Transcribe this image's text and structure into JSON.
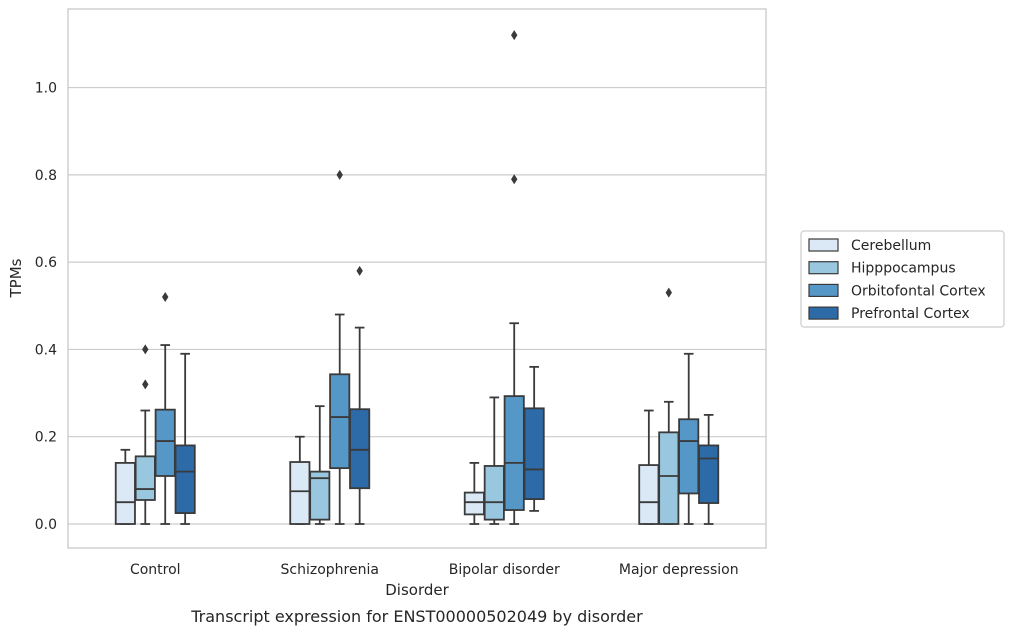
{
  "chart_data": {
    "type": "boxplot",
    "caption": "Transcript expression for ENST00000502049 by disorder",
    "xlabel": "Disorder",
    "ylabel": "TPMs",
    "ylim": [
      -0.055,
      1.18
    ],
    "yticks": [
      0.0,
      0.2,
      0.4,
      0.6,
      0.8,
      1.0
    ],
    "ytick_labels": [
      "0.0",
      "0.2",
      "0.4",
      "0.6",
      "0.8",
      "1.0"
    ],
    "grid": "horizontal",
    "legend_position": "right",
    "categories": [
      "Control",
      "Schizophrenia",
      "Bipolar disorder",
      "Major depression"
    ],
    "series": [
      {
        "name": "Cerebellum",
        "color": "#dbe9f6",
        "boxes": [
          {
            "whislo": 0.0,
            "q1": 0.0,
            "med": 0.05,
            "q3": 0.14,
            "whishi": 0.17,
            "fliers": []
          },
          {
            "whislo": 0.0,
            "q1": 0.0,
            "med": 0.075,
            "q3": 0.142,
            "whishi": 0.2,
            "fliers": []
          },
          {
            "whislo": 0.0,
            "q1": 0.022,
            "med": 0.05,
            "q3": 0.072,
            "whishi": 0.14,
            "fliers": []
          },
          {
            "whislo": 0.0,
            "q1": 0.0,
            "med": 0.05,
            "q3": 0.135,
            "whishi": 0.26,
            "fliers": []
          }
        ]
      },
      {
        "name": "Hipppocampus",
        "color": "#9ac7e0",
        "boxes": [
          {
            "whislo": 0.0,
            "q1": 0.055,
            "med": 0.08,
            "q3": 0.155,
            "whishi": 0.26,
            "fliers": [
              0.32,
              0.4
            ]
          },
          {
            "whislo": 0.0,
            "q1": 0.01,
            "med": 0.105,
            "q3": 0.12,
            "whishi": 0.27,
            "fliers": []
          },
          {
            "whislo": 0.0,
            "q1": 0.01,
            "med": 0.05,
            "q3": 0.133,
            "whishi": 0.29,
            "fliers": []
          },
          {
            "whislo": 0.0,
            "q1": 0.0,
            "med": 0.11,
            "q3": 0.21,
            "whishi": 0.28,
            "fliers": [
              0.53
            ]
          }
        ]
      },
      {
        "name": "Orbitofontal Cortex",
        "color": "#5597c6",
        "boxes": [
          {
            "whislo": 0.0,
            "q1": 0.11,
            "med": 0.19,
            "q3": 0.262,
            "whishi": 0.41,
            "fliers": [
              0.52
            ]
          },
          {
            "whislo": 0.0,
            "q1": 0.128,
            "med": 0.245,
            "q3": 0.343,
            "whishi": 0.48,
            "fliers": [
              0.8
            ]
          },
          {
            "whislo": 0.0,
            "q1": 0.032,
            "med": 0.14,
            "q3": 0.293,
            "whishi": 0.46,
            "fliers": [
              0.79,
              1.12
            ]
          },
          {
            "whislo": 0.0,
            "q1": 0.07,
            "med": 0.19,
            "q3": 0.24,
            "whishi": 0.39,
            "fliers": []
          }
        ]
      },
      {
        "name": "Prefrontal Cortex",
        "color": "#2c6aa8",
        "boxes": [
          {
            "whislo": 0.0,
            "q1": 0.025,
            "med": 0.12,
            "q3": 0.18,
            "whishi": 0.39,
            "fliers": []
          },
          {
            "whislo": 0.0,
            "q1": 0.082,
            "med": 0.17,
            "q3": 0.263,
            "whishi": 0.45,
            "fliers": [
              0.58
            ]
          },
          {
            "whislo": 0.03,
            "q1": 0.057,
            "med": 0.125,
            "q3": 0.265,
            "whishi": 0.36,
            "fliers": []
          },
          {
            "whislo": 0.0,
            "q1": 0.048,
            "med": 0.15,
            "q3": 0.18,
            "whishi": 0.25,
            "fliers": []
          }
        ]
      }
    ]
  }
}
